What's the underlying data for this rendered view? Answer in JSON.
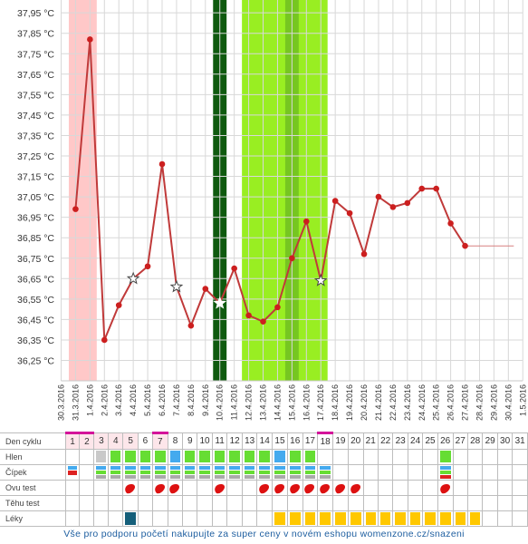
{
  "chart_data": {
    "type": "line",
    "y_ticks": [
      "37,95 °C",
      "37,85 °C",
      "37,75 °C",
      "37,65 °C",
      "37,55 °C",
      "37,45 °C",
      "37,35 °C",
      "37,25 °C",
      "37,15 °C",
      "37,05 °C",
      "36,95 °C",
      "36,85 °C",
      "36,75 °C",
      "36,65 °C",
      "36,55 °C",
      "36,45 °C",
      "36,35 °C",
      "36,25 °C"
    ],
    "y_tick_values": [
      37.95,
      37.85,
      37.75,
      37.65,
      37.55,
      37.45,
      37.35,
      37.25,
      37.15,
      37.05,
      36.95,
      36.85,
      36.75,
      36.65,
      36.55,
      36.45,
      36.35,
      36.25
    ],
    "ylim": [
      36.15,
      38.0
    ],
    "x_dates": [
      "30.3.2016",
      "31.3.2016",
      "1.4.2016",
      "2.4.2016",
      "3.4.2016",
      "4.4.2016",
      "5.4.2016",
      "6.4.2016",
      "7.4.2016",
      "8.4.2016",
      "9.4.2016",
      "10.4.2016",
      "11.4.2016",
      "12.4.2016",
      "13.4.2016",
      "14.4.2016",
      "15.4.2016",
      "16.4.2016",
      "17.4.2016",
      "18.4.2016",
      "19.4.2016",
      "20.4.2016",
      "21.4.2016",
      "22.4.2016",
      "23.4.2016",
      "24.4.2016",
      "25.4.2016",
      "26.4.2016",
      "27.4.2016",
      "28.4.2016",
      "29.4.2016",
      "30.4.2016",
      "1.5.2016"
    ],
    "temperatures": [
      {
        "date": "31.3.2016",
        "value": 36.99,
        "marker": "dot"
      },
      {
        "date": "1.4.2016",
        "value": 37.82,
        "marker": "dot"
      },
      {
        "date": "2.4.2016",
        "value": 36.35,
        "marker": "dot"
      },
      {
        "date": "3.4.2016",
        "value": 36.52,
        "marker": "dot"
      },
      {
        "date": "4.4.2016",
        "value": 36.65,
        "marker": "star"
      },
      {
        "date": "5.4.2016",
        "value": 36.71,
        "marker": "dot"
      },
      {
        "date": "6.4.2016",
        "value": 37.21,
        "marker": "dot"
      },
      {
        "date": "7.4.2016",
        "value": 36.61,
        "marker": "star"
      },
      {
        "date": "8.4.2016",
        "value": 36.42,
        "marker": "dot"
      },
      {
        "date": "9.4.2016",
        "value": 36.6,
        "marker": "dot"
      },
      {
        "date": "10.4.2016",
        "value": 36.53,
        "marker": "star-white"
      },
      {
        "date": "11.4.2016",
        "value": 36.7,
        "marker": "dot"
      },
      {
        "date": "12.4.2016",
        "value": 36.47,
        "marker": "dot"
      },
      {
        "date": "13.4.2016",
        "value": 36.44,
        "marker": "dot"
      },
      {
        "date": "14.4.2016",
        "value": 36.51,
        "marker": "dot"
      },
      {
        "date": "15.4.2016",
        "value": 36.75,
        "marker": "dot"
      },
      {
        "date": "16.4.2016",
        "value": 36.93,
        "marker": "dot"
      },
      {
        "date": "17.4.2016",
        "value": 36.64,
        "marker": "star"
      },
      {
        "date": "18.4.2016",
        "value": 37.03,
        "marker": "dot"
      },
      {
        "date": "19.4.2016",
        "value": 36.97,
        "marker": "dot"
      },
      {
        "date": "20.4.2016",
        "value": 36.77,
        "marker": "dot"
      },
      {
        "date": "21.4.2016",
        "value": 37.05,
        "marker": "dot"
      },
      {
        "date": "22.4.2016",
        "value": 37.0,
        "marker": "dot"
      },
      {
        "date": "23.4.2016",
        "value": 37.02,
        "marker": "dot"
      },
      {
        "date": "24.4.2016",
        "value": 37.09,
        "marker": "dot"
      },
      {
        "date": "25.4.2016",
        "value": 37.09,
        "marker": "dot"
      },
      {
        "date": "26.4.2016",
        "value": 36.92,
        "marker": "dot"
      },
      {
        "date": "27.4.2016",
        "value": 36.81,
        "marker": "dot"
      }
    ],
    "baseline": {
      "value": 36.81,
      "from": "27.4.2016",
      "to": "30.4.2016"
    },
    "bands": [
      {
        "from": "31.3.2016",
        "to": "1.4.2016",
        "color": "#ffc8c8"
      },
      {
        "from": "10.4.2016",
        "to": "10.4.2016",
        "color": "#0f5a0f"
      },
      {
        "from": "12.4.2016",
        "to": "17.4.2016",
        "color": "#99ee22"
      },
      {
        "from": "15.4.2016",
        "to": "15.4.2016",
        "color": "#76c621"
      }
    ],
    "line_color": "#c03a3a",
    "dot_color": "#cc1f1f",
    "grid": true
  },
  "table": {
    "row_labels": [
      "Den cyklu",
      "Hlen",
      "Čípek",
      "Ovu test",
      "Těhu test",
      "Léky"
    ],
    "days": [
      "1",
      "2",
      "3",
      "4",
      "5",
      "6",
      "7",
      "8",
      "9",
      "10",
      "11",
      "12",
      "13",
      "14",
      "15",
      "16",
      "17",
      "18",
      "19",
      "20",
      "21",
      "22",
      "23",
      "24",
      "25",
      "26",
      "27",
      "28",
      "29",
      "30",
      "31"
    ],
    "magenta_top_days": [
      1,
      2,
      7,
      18
    ],
    "pink_days": [
      1,
      2,
      3,
      4,
      5,
      7
    ],
    "hlen": {
      "3": "gray",
      "4": "green",
      "5": "green",
      "6": "green",
      "7": "green",
      "8": "blue",
      "9": "green",
      "10": "green",
      "11": "green",
      "12": "green",
      "13": "green",
      "14": "green",
      "15": "blue",
      "16": "green",
      "17": "green",
      "26": "green"
    },
    "cipek": {
      "1": "red",
      "3": "mix",
      "4": "mix",
      "5": "mix",
      "6": "mix",
      "7": "mix",
      "8": "mix",
      "9": "mix",
      "10": "mix",
      "11": "mix",
      "12": "mix",
      "13": "mix",
      "14": "mix",
      "15": "mix",
      "16": "mix",
      "17": "mix",
      "18": "mix",
      "26": "mixred"
    },
    "ovu_days": [
      5,
      7,
      8,
      11,
      14,
      15,
      16,
      17,
      18,
      19,
      20,
      26
    ],
    "leky_teal_days": [
      5
    ],
    "leky_yellow_days": [
      15,
      16,
      17,
      18,
      19,
      20,
      21,
      22,
      23,
      24,
      25,
      26,
      27,
      28
    ]
  },
  "footer_text": "Vše pro podporu početí nakupujte za super ceny v novém eshopu womenzone.cz/snazeni",
  "colors": {
    "grid": "#d8d8d8",
    "magenta": "#d4149a",
    "green": "#66dd33",
    "blue": "#44aaee",
    "red": "#dd2222",
    "teal": "#155f7a",
    "yellow": "#ffc800",
    "drop": "#dd1111"
  }
}
